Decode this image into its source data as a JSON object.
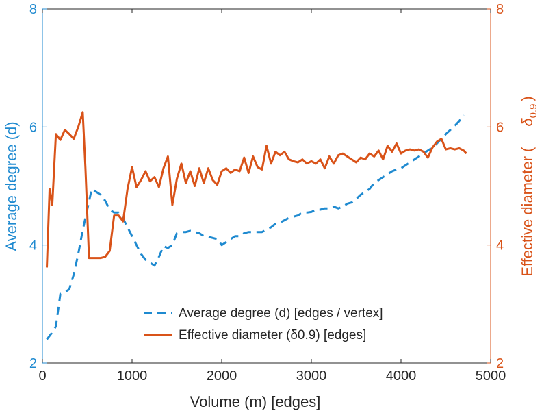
{
  "chart_data": {
    "type": "line",
    "xlabel": "Volume (m) [edges]",
    "xlim": [
      0,
      5000
    ],
    "xticks": [
      0,
      1000,
      2000,
      3000,
      4000,
      5000
    ],
    "ylabel_left": "Average degree (d)",
    "ylim_left": [
      2,
      8
    ],
    "yticks_left": [
      2,
      4,
      6,
      8
    ],
    "ylabel_right_prefix": "Effective diameter (",
    "ylabel_right_symbol": "δ",
    "ylabel_right_subscript": "0.9",
    "ylabel_right_suffix": ")",
    "ylim_right": [
      2,
      8
    ],
    "yticks_right": [
      2,
      4,
      6,
      8
    ],
    "grid": false,
    "legend_position": "bottom-right",
    "colors": {
      "left_axis": "#1f8ad0",
      "right_axis": "#d95319",
      "axis_dark": "#262626"
    },
    "series": [
      {
        "name": "Average degree (d) [edges / vertex]",
        "axis": "left",
        "style": "dashed",
        "color": "#1f8ad0",
        "x": [
          50,
          100,
          150,
          200,
          250,
          300,
          350,
          400,
          450,
          500,
          550,
          600,
          650,
          700,
          750,
          800,
          850,
          900,
          950,
          1000,
          1050,
          1100,
          1150,
          1200,
          1250,
          1300,
          1350,
          1400,
          1450,
          1500,
          1550,
          1600,
          1650,
          1700,
          1750,
          1800,
          1850,
          1900,
          1950,
          2000,
          2050,
          2100,
          2150,
          2200,
          2250,
          2300,
          2350,
          2400,
          2450,
          2500,
          2550,
          2600,
          2650,
          2700,
          2750,
          2800,
          2850,
          2900,
          2950,
          3000,
          3050,
          3100,
          3150,
          3200,
          3250,
          3300,
          3350,
          3400,
          3450,
          3500,
          3550,
          3600,
          3650,
          3700,
          3750,
          3800,
          3850,
          3900,
          3950,
          4000,
          4050,
          4100,
          4150,
          4200,
          4250,
          4300,
          4350,
          4400,
          4450,
          4500,
          4550,
          4600,
          4650,
          4700
        ],
        "values": [
          2.4,
          2.5,
          2.62,
          3.17,
          3.2,
          3.25,
          3.5,
          3.85,
          4.25,
          4.6,
          4.95,
          4.9,
          4.85,
          4.75,
          4.6,
          4.55,
          4.55,
          4.45,
          4.3,
          4.15,
          4.0,
          3.85,
          3.75,
          3.7,
          3.65,
          3.8,
          3.98,
          3.95,
          4.0,
          4.2,
          4.22,
          4.22,
          4.24,
          4.22,
          4.2,
          4.15,
          4.14,
          4.12,
          4.1,
          4.0,
          4.05,
          4.1,
          4.15,
          4.15,
          4.2,
          4.22,
          4.22,
          4.22,
          4.22,
          4.26,
          4.3,
          4.36,
          4.38,
          4.42,
          4.46,
          4.48,
          4.5,
          4.55,
          4.55,
          4.56,
          4.6,
          4.6,
          4.62,
          4.62,
          4.65,
          4.62,
          4.65,
          4.7,
          4.72,
          4.78,
          4.85,
          4.9,
          4.95,
          5.05,
          5.1,
          5.15,
          5.2,
          5.25,
          5.28,
          5.3,
          5.35,
          5.4,
          5.45,
          5.5,
          5.55,
          5.6,
          5.65,
          5.72,
          5.8,
          5.88,
          5.95,
          6.02,
          6.1,
          6.2
        ]
      },
      {
        "name": "Effective diameter (δ0.9) [edges]",
        "axis": "right",
        "style": "solid",
        "color": "#d95319",
        "x": [
          50,
          80,
          110,
          150,
          200,
          250,
          300,
          350,
          400,
          450,
          480,
          520,
          560,
          600,
          650,
          700,
          750,
          800,
          850,
          900,
          950,
          1000,
          1050,
          1100,
          1150,
          1200,
          1250,
          1300,
          1350,
          1400,
          1450,
          1500,
          1550,
          1600,
          1650,
          1700,
          1750,
          1800,
          1850,
          1900,
          1950,
          2000,
          2050,
          2100,
          2150,
          2200,
          2250,
          2300,
          2350,
          2400,
          2450,
          2500,
          2550,
          2600,
          2650,
          2700,
          2750,
          2800,
          2850,
          2900,
          2950,
          3000,
          3050,
          3100,
          3150,
          3200,
          3250,
          3300,
          3350,
          3400,
          3450,
          3500,
          3550,
          3600,
          3650,
          3700,
          3750,
          3800,
          3850,
          3900,
          3950,
          4000,
          4050,
          4100,
          4150,
          4200,
          4250,
          4300,
          4350,
          4400,
          4450,
          4500,
          4550,
          4600,
          4650,
          4700,
          4730
        ],
        "values": [
          3.62,
          4.95,
          4.68,
          5.88,
          5.78,
          5.95,
          5.88,
          5.8,
          6.0,
          6.25,
          5.3,
          3.78,
          3.78,
          3.78,
          3.78,
          3.8,
          3.9,
          4.5,
          4.5,
          4.4,
          4.95,
          5.32,
          4.98,
          5.1,
          5.25,
          5.08,
          5.15,
          4.98,
          5.3,
          5.5,
          4.68,
          5.12,
          5.38,
          5.05,
          5.25,
          5.0,
          5.3,
          5.05,
          5.3,
          5.1,
          5.02,
          5.25,
          5.3,
          5.22,
          5.28,
          5.25,
          5.48,
          5.22,
          5.5,
          5.32,
          5.28,
          5.68,
          5.38,
          5.58,
          5.52,
          5.58,
          5.45,
          5.42,
          5.4,
          5.45,
          5.38,
          5.42,
          5.38,
          5.45,
          5.3,
          5.5,
          5.38,
          5.52,
          5.55,
          5.5,
          5.45,
          5.4,
          5.48,
          5.45,
          5.55,
          5.5,
          5.6,
          5.45,
          5.68,
          5.58,
          5.72,
          5.55,
          5.6,
          5.62,
          5.6,
          5.62,
          5.58,
          5.48,
          5.65,
          5.75,
          5.8,
          5.62,
          5.64,
          5.62,
          5.64,
          5.6,
          5.55
        ]
      }
    ]
  }
}
